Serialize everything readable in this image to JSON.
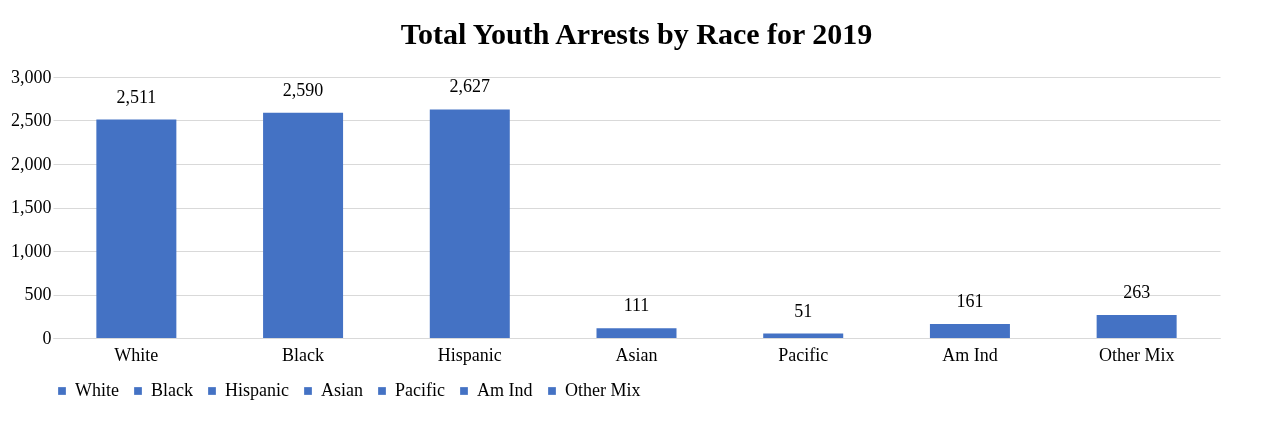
{
  "chart_data": {
    "type": "bar",
    "title": "Total Youth Arrests by Race for 2019",
    "categories": [
      "White",
      "Black",
      "Hispanic",
      "Asian",
      "Pacific",
      "Am Ind",
      "Other Mix"
    ],
    "series": [
      {
        "name": "White",
        "color": "#4472c4",
        "values": [
          2511,
          null,
          null,
          null,
          null,
          null,
          null
        ],
        "value_labels": [
          "2,511",
          null,
          null,
          null,
          null,
          null,
          null
        ]
      },
      {
        "name": "Black",
        "color": "#4472c4",
        "values": [
          null,
          2590,
          null,
          null,
          null,
          null,
          null
        ],
        "value_labels": [
          null,
          "2,590",
          null,
          null,
          null,
          null,
          null
        ]
      },
      {
        "name": "Hispanic",
        "color": "#4472c4",
        "values": [
          null,
          null,
          2627,
          null,
          null,
          null,
          null
        ],
        "value_labels": [
          null,
          null,
          "2,627",
          null,
          null,
          null,
          null
        ]
      },
      {
        "name": "Asian",
        "color": "#4472c4",
        "values": [
          null,
          null,
          null,
          111,
          null,
          null,
          null
        ],
        "value_labels": [
          null,
          null,
          null,
          "111",
          null,
          null,
          null
        ]
      },
      {
        "name": "Pacific",
        "color": "#4472c4",
        "values": [
          null,
          null,
          null,
          null,
          51,
          null,
          null
        ],
        "value_labels": [
          null,
          null,
          null,
          null,
          "51",
          null,
          null
        ]
      },
      {
        "name": "Am Ind",
        "color": "#4472c4",
        "values": [
          null,
          null,
          null,
          null,
          null,
          161,
          null
        ],
        "value_labels": [
          null,
          null,
          null,
          null,
          null,
          "161",
          null
        ]
      },
      {
        "name": "Other Mix",
        "color": "#4472c4",
        "values": [
          null,
          null,
          null,
          null,
          null,
          null,
          263
        ],
        "value_labels": [
          null,
          null,
          null,
          null,
          null,
          null,
          "263"
        ]
      }
    ],
    "ylim": [
      0,
      3000
    ],
    "yticks": [
      0,
      {
        "value": 500,
        "label": "500"
      },
      {
        "value": 1000,
        "label": "1,000"
      },
      {
        "value": 1500,
        "label": "1,500"
      },
      {
        "value": 2000,
        "label": "2,000"
      },
      {
        "value": 2500,
        "label": "2,500"
      },
      {
        "value": 3000,
        "label": "3,000"
      }
    ],
    "grid": "y",
    "legend": "bottom"
  }
}
